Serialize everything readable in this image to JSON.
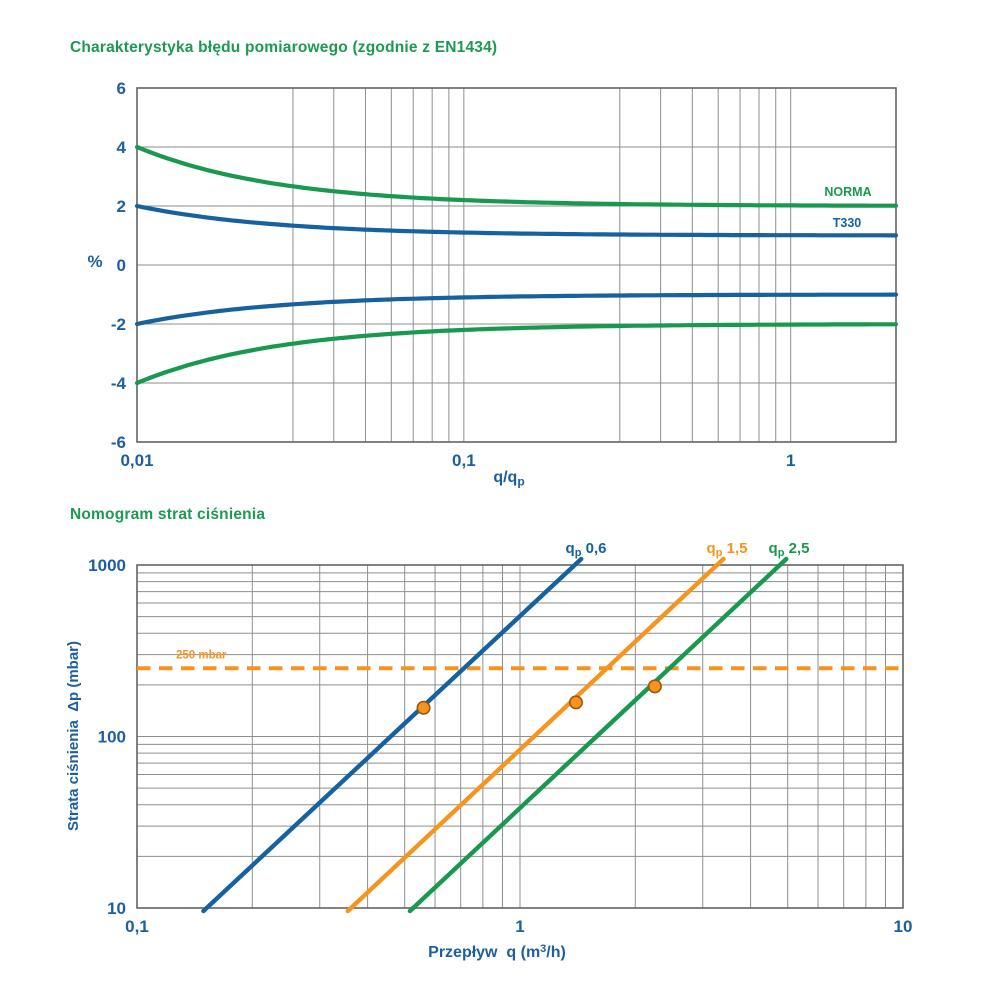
{
  "colors": {
    "green": "#18994f",
    "blue": "#16619f",
    "orange": "#f7941e",
    "text_blue": "#1d5f9e",
    "title_green": "#1b9a52",
    "grid": "#8e8e8e",
    "border": "#636363",
    "marker_fill": "#f7941e",
    "marker_stroke": "#96560b",
    "background": "#ffffff"
  },
  "chart_data": [
    {
      "id": "measurement-error-chart",
      "type": "line",
      "title": "Charakterystyka błędu pomiarowego (zgodnie z EN1434)",
      "xlabel": {
        "main": "q/q",
        "sub": "p"
      },
      "ylabel": "%",
      "x_scale": "log",
      "y_scale": "linear",
      "xlim": [
        0.01,
        2.1
      ],
      "ylim": [
        -6,
        6
      ],
      "grid": true,
      "legend_position": "right-inside",
      "x_ticks": [
        {
          "value": 0.01,
          "label": "0,01"
        },
        {
          "value": 0.1,
          "label": "0,1"
        },
        {
          "value": 1,
          "label": "1"
        }
      ],
      "y_ticks": [
        {
          "value": 6,
          "label": "6"
        },
        {
          "value": 4,
          "label": "4"
        },
        {
          "value": 2,
          "label": "2"
        },
        {
          "value": 0,
          "label": "0"
        },
        {
          "value": -2,
          "label": "-2"
        },
        {
          "value": -4,
          "label": "-4"
        },
        {
          "value": -6,
          "label": "-6"
        }
      ],
      "x_gridlines": [
        0.03,
        0.04,
        0.05,
        0.06,
        0.07,
        0.08,
        0.09,
        0.1,
        0.3,
        0.4,
        0.5,
        0.6,
        0.7,
        0.8,
        0.9,
        1
      ],
      "y_gridlines": [
        -4,
        -2,
        0,
        2,
        4
      ],
      "series": [
        {
          "name": "NORMA",
          "color": "green",
          "mirrored": true,
          "base_error_pct": 2,
          "coeff_pct": 0.02,
          "description": "error limit ±(2 + 0.02·qp/q) %: ±4% at q/qp=0.01 converging to ±2%"
        },
        {
          "name": "T330",
          "color": "blue",
          "mirrored": true,
          "base_error_pct": 1,
          "coeff_pct": 0.01,
          "description": "error ±(1 + 0.01·qp/q) %: ±2% at q/qp=0.01 converging to ±1%"
        }
      ]
    },
    {
      "id": "pressure-loss-nomogram",
      "type": "line",
      "title": "Nomogram strat ciśnienia",
      "xlabel": {
        "pre": "Przepływ  q (m",
        "sup": "3",
        "rest": "/h)"
      },
      "ylabel": "Strata ciśnienia  Δp (mbar)",
      "x_scale": "log",
      "y_scale": "log",
      "xlim": [
        0.1,
        10
      ],
      "ylim": [
        10,
        1000
      ],
      "grid": true,
      "x_ticks": [
        {
          "value": 0.1,
          "label": "0,1"
        },
        {
          "value": 1,
          "label": "1"
        },
        {
          "value": 10,
          "label": "10"
        }
      ],
      "y_ticks": [
        {
          "value": 1000,
          "label": "1000"
        },
        {
          "value": 100,
          "label": "100"
        },
        {
          "value": 10,
          "label": "10"
        }
      ],
      "x_gridlines": [
        0.2,
        0.3,
        0.4,
        0.5,
        0.6,
        0.7,
        0.8,
        0.9,
        1,
        2,
        3,
        4,
        5,
        6,
        7,
        8,
        9
      ],
      "y_gridlines": [
        20,
        30,
        40,
        50,
        60,
        70,
        80,
        90,
        100,
        200,
        300,
        400,
        500,
        600,
        700,
        800,
        900
      ],
      "reference_line": {
        "value_mbar": 250,
        "label": "250 mbar",
        "color": "orange",
        "style": "dashed"
      },
      "series": [
        {
          "name_parts": {
            "pre": "q",
            "sub": "p",
            "rest": " 0,6"
          },
          "name_text": "qp 0,6",
          "color": "blue",
          "endpoints": [
            {
              "q": 0.152,
              "dp": 10
            },
            {
              "q": 1.39,
              "dp": 1000
            }
          ],
          "marker": {
            "q": 0.56,
            "dp": 147
          }
        },
        {
          "name_parts": {
            "pre": "q",
            "sub": "p",
            "rest": " 1,5"
          },
          "name_text": "qp 1,5",
          "color": "orange",
          "endpoints": [
            {
              "q": 0.362,
              "dp": 10
            },
            {
              "q": 3.27,
              "dp": 1000
            }
          ],
          "marker": {
            "q": 1.4,
            "dp": 158
          }
        },
        {
          "name_parts": {
            "pre": "q",
            "sub": "p",
            "rest": " 2,5"
          },
          "name_text": "qp 2,5",
          "color": "green",
          "endpoints": [
            {
              "q": 0.526,
              "dp": 10
            },
            {
              "q": 4.77,
              "dp": 1000
            }
          ],
          "marker": {
            "q": 2.25,
            "dp": 196
          }
        }
      ]
    }
  ]
}
